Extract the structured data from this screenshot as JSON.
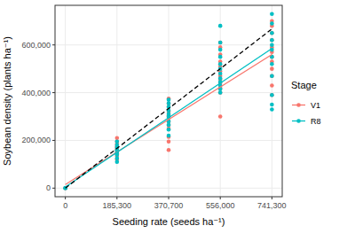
{
  "chart_data": {
    "type": "scatter",
    "x_label": "Seeding rate (seeds ha⁻¹)",
    "y_label": "Soybean density (plants ha⁻¹)",
    "legend_title": "Stage",
    "legend": "right",
    "grid": true,
    "xlim": [
      -37065,
      778365
    ],
    "ylim": [
      -36000,
      766000
    ],
    "xticks": [
      0,
      {
        "value": 185300,
        "label": "185,300"
      },
      {
        "value": 370700,
        "label": "370,700"
      },
      {
        "value": 556000,
        "label": "556,000"
      },
      {
        "value": 741300,
        "label": "741,300"
      }
    ],
    "yticks": [
      0,
      {
        "value": 200000,
        "label": "200,000"
      },
      {
        "value": 400000,
        "label": "400,000"
      },
      {
        "value": 600000,
        "label": "600,000"
      }
    ],
    "series": [
      {
        "name": "V1",
        "type": "scatter",
        "marker": "circle",
        "color": "#F8766D",
        "x": [
          0,
          0,
          185300,
          185300,
          185300,
          185300,
          185300,
          185300,
          185300,
          185300,
          185300,
          185300,
          370700,
          370700,
          370700,
          370700,
          370700,
          370700,
          370700,
          370700,
          370700,
          370700,
          370700,
          370700,
          556000,
          556000,
          556000,
          556000,
          556000,
          556000,
          556000,
          556000,
          556000,
          556000,
          556000,
          556000,
          741300,
          741300,
          741300,
          741300,
          741300,
          741300,
          741300,
          741300,
          741300,
          741300,
          741300,
          741300
        ],
        "values": [
          0,
          0,
          120000,
          135000,
          145000,
          150000,
          160000,
          165000,
          175000,
          185000,
          195000,
          210000,
          160000,
          195000,
          215000,
          250000,
          265000,
          280000,
          295000,
          305000,
          320000,
          340000,
          355000,
          375000,
          300000,
          400000,
          420000,
          440000,
          455000,
          470000,
          490000,
          510000,
          530000,
          560000,
          590000,
          610000,
          390000,
          430000,
          470000,
          500000,
          530000,
          550000,
          570000,
          590000,
          620000,
          650000,
          680000,
          700000
        ]
      },
      {
        "name": "R8",
        "type": "scatter",
        "marker": "circle",
        "color": "#00BFC4",
        "x": [
          0,
          0,
          185300,
          185300,
          185300,
          185300,
          185300,
          185300,
          185300,
          185300,
          370700,
          370700,
          370700,
          370700,
          370700,
          370700,
          370700,
          370700,
          370700,
          370700,
          556000,
          556000,
          556000,
          556000,
          556000,
          556000,
          556000,
          556000,
          556000,
          556000,
          556000,
          556000,
          741300,
          741300,
          741300,
          741300,
          741300,
          741300,
          741300,
          741300,
          741300,
          741300,
          741300,
          741300
        ],
        "values": [
          0,
          0,
          110000,
          125000,
          140000,
          150000,
          160000,
          170000,
          180000,
          195000,
          220000,
          245000,
          265000,
          280000,
          300000,
          310000,
          325000,
          340000,
          355000,
          370000,
          400000,
          415000,
          430000,
          445000,
          460000,
          480000,
          500000,
          520000,
          550000,
          580000,
          610000,
          680000,
          330000,
          350000,
          390000,
          470000,
          520000,
          550000,
          580000,
          600000,
          620000,
          650000,
          690000,
          730000
        ]
      },
      {
        "type": "line",
        "line_style": "solid",
        "color": "#F8766D",
        "x": [
          0,
          741300
        ],
        "values": [
          15000,
          560000
        ]
      },
      {
        "type": "line",
        "line_style": "solid",
        "color": "#00BFC4",
        "x": [
          0,
          741300
        ],
        "values": [
          5000,
          585000
        ]
      },
      {
        "type": "line",
        "line_style": "dashed",
        "color": "#000000",
        "x": [
          0,
          741300
        ],
        "values": [
          0,
          667000
        ]
      }
    ]
  }
}
